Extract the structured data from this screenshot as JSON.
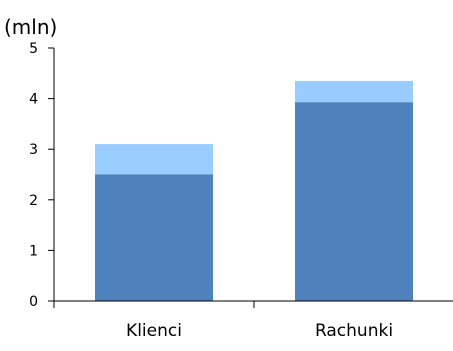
{
  "chart_data": {
    "type": "bar",
    "stacked": true,
    "unit_label": "(mln)",
    "categories": [
      "Klienci",
      "Rachunki"
    ],
    "series": [
      {
        "values": [
          2.5,
          3.93
        ],
        "color": "#4f81bd"
      },
      {
        "values": [
          0.6,
          0.42
        ],
        "color": "#99ccff"
      }
    ],
    "ylim": [
      0,
      5
    ],
    "yticks": [
      "0",
      "1",
      "2",
      "3",
      "4",
      "5"
    ],
    "grid": false,
    "legend": "none"
  }
}
